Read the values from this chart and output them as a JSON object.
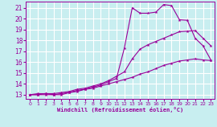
{
  "xlabel": "Windchill (Refroidissement éolien,°C)",
  "bg_color": "#c8eef0",
  "grid_color": "#ffffff",
  "line_color": "#990099",
  "x_ticks": [
    0,
    1,
    2,
    3,
    4,
    5,
    6,
    7,
    8,
    9,
    10,
    11,
    12,
    13,
    14,
    15,
    16,
    17,
    18,
    19,
    20,
    21,
    22,
    23
  ],
  "y_ticks": [
    13,
    14,
    15,
    16,
    17,
    18,
    19,
    20,
    21
  ],
  "xlim": [
    -0.5,
    23.5
  ],
  "ylim": [
    12.6,
    21.6
  ],
  "line1_x": [
    0,
    1,
    2,
    3,
    4,
    5,
    6,
    7,
    8,
    9,
    10,
    11,
    12,
    13,
    14,
    15,
    16,
    17,
    18,
    19,
    20,
    21,
    22,
    23
  ],
  "line1_y": [
    13.0,
    13.0,
    13.0,
    13.0,
    13.1,
    13.2,
    13.3,
    13.5,
    13.6,
    13.8,
    14.0,
    14.2,
    14.4,
    14.6,
    14.9,
    15.1,
    15.4,
    15.7,
    15.9,
    16.1,
    16.2,
    16.3,
    16.2,
    16.15
  ],
  "line2_x": [
    0,
    1,
    2,
    3,
    4,
    5,
    6,
    7,
    8,
    9,
    10,
    11,
    12,
    13,
    14,
    15,
    16,
    17,
    18,
    19,
    20,
    21,
    22,
    23
  ],
  "line2_y": [
    13.0,
    13.0,
    13.1,
    13.1,
    13.2,
    13.3,
    13.5,
    13.6,
    13.8,
    14.0,
    14.3,
    14.7,
    15.1,
    16.3,
    17.2,
    17.6,
    17.9,
    18.2,
    18.5,
    18.8,
    18.85,
    18.9,
    18.2,
    17.5
  ],
  "line3_x": [
    0,
    1,
    2,
    3,
    4,
    5,
    6,
    7,
    8,
    9,
    10,
    11,
    12,
    13,
    14,
    15,
    16,
    17,
    18,
    19,
    20,
    21,
    22,
    23
  ],
  "line3_y": [
    13.0,
    13.1,
    13.1,
    13.0,
    13.0,
    13.2,
    13.4,
    13.5,
    13.7,
    13.9,
    14.2,
    14.5,
    17.3,
    21.0,
    20.5,
    20.5,
    20.6,
    21.3,
    21.2,
    19.9,
    19.85,
    18.2,
    17.5,
    16.2
  ]
}
